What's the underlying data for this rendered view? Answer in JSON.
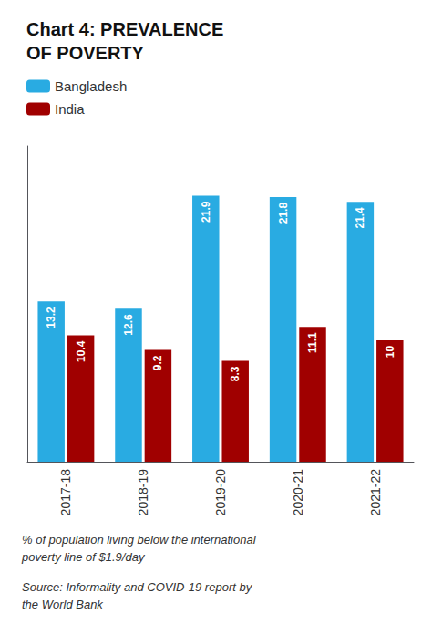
{
  "chart_data": {
    "type": "bar",
    "title": "Chart 4: PREVALENCE\nOF POVERTY",
    "categories": [
      "2017-18",
      "2018-19",
      "2019-20",
      "2020-21",
      "2021-22"
    ],
    "series": [
      {
        "name": "Bangladesh",
        "color": "#29ABE2",
        "values": [
          13.2,
          12.6,
          21.9,
          21.8,
          21.4
        ]
      },
      {
        "name": "India",
        "color": "#A00000",
        "values": [
          10.4,
          9.2,
          8.3,
          11.1,
          10.0
        ]
      }
    ],
    "ylim": [
      0,
      26
    ],
    "grid": false,
    "legend": "top left",
    "data_labels": true,
    "tick_labels": "x",
    "annotations": [
      "% of population living below the international\npoverty line of $1.9/day",
      "Source: Informality and COVID-19 report by\nthe World Bank"
    ]
  }
}
